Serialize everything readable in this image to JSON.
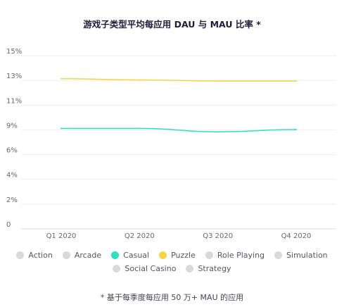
{
  "title": "游戏子类型平均每应用 DAU 与 MAU 比率 *",
  "footnote": "* 基于每季度每应用 50 万+ MAU 的应用",
  "colors": {
    "Action": "#d9d9d9",
    "Arcade": "#d9d9d9",
    "Casual": "#2de0c0",
    "Puzzle": "#f5d446",
    "Role Playing": "#d9d9d9",
    "Simulation": "#d9d9d9",
    "Social Casino": "#d9d9d9",
    "Strategy": "#d9d9d9"
  },
  "legend": [
    "Action",
    "Arcade",
    "Casual",
    "Puzzle",
    "Role Playing",
    "Simulation",
    "Social Casino",
    "Strategy"
  ],
  "chart_data": {
    "type": "line",
    "categories": [
      "Q1 2020",
      "Q2 2020",
      "Q3 2020",
      "Q4 2020"
    ],
    "y_ticks": [
      "0",
      "2%",
      "4%",
      "6%",
      "9%",
      "11%",
      "13%",
      "15%"
    ],
    "ylim": [
      0,
      15
    ],
    "grid": true,
    "legend_position": "bottom",
    "series": [
      {
        "name": "Casual",
        "values": [
          8.7,
          8.7,
          8.4,
          8.6
        ]
      },
      {
        "name": "Puzzle",
        "values": [
          13.0,
          12.9,
          12.8,
          12.8
        ]
      }
    ]
  }
}
